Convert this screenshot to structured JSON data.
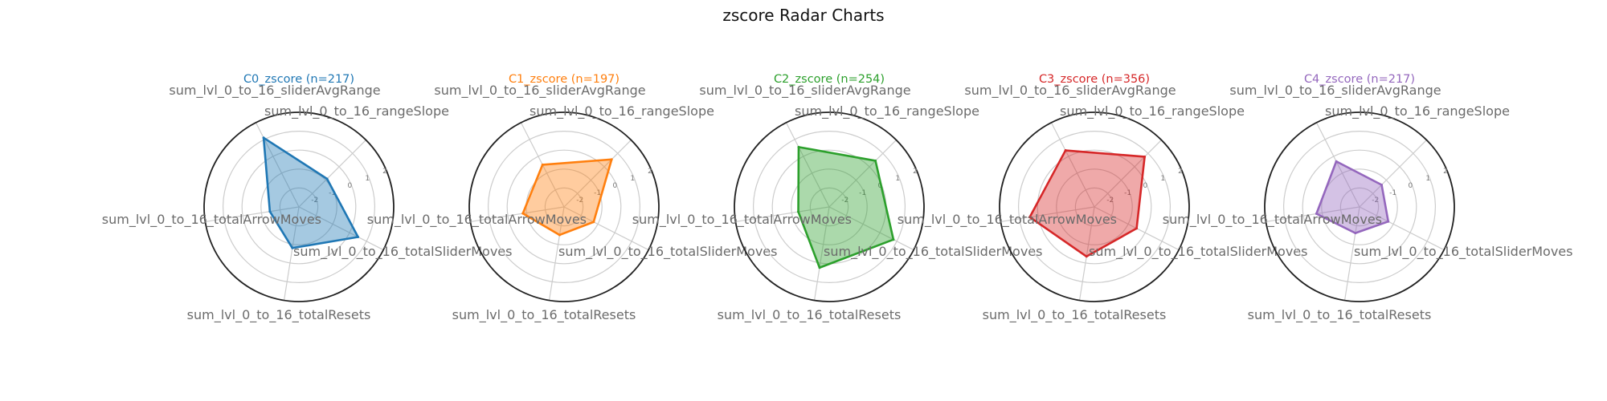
{
  "title": "zscore Radar Charts",
  "chart_data": {
    "type": "radar",
    "title": "zscore Radar Charts",
    "categories": [
      "sum_lvl_0_to_16_rangeSlope",
      "sum_lvl_0_to_16_sliderAvgRange",
      "sum_lvl_0_to_16_totalArrowMoves",
      "sum_lvl_0_to_16_totalResets",
      "sum_lvl_0_to_16_totalSliderMoves"
    ],
    "radial_ticks": [
      "-2",
      "-1",
      "0",
      "1",
      "2"
    ],
    "rlim": [
      -3,
      2
    ],
    "grid": true,
    "series": [
      {
        "name": "C0_zscore (n=217)",
        "color": "#1f77b4",
        "values": [
          -0.9,
          1.1,
          -1.45,
          -0.8,
          0.5
        ]
      },
      {
        "name": "C1_zscore (n=197)",
        "color": "#ff7f0e",
        "values": [
          0.55,
          -0.5,
          -0.8,
          -1.5,
          -1.25
        ]
      },
      {
        "name": "C2_zscore (n=254)",
        "color": "#2ca02c",
        "values": [
          0.45,
          0.55,
          -1.35,
          0.25,
          0.8
        ]
      },
      {
        "name": "C3_zscore (n=356)",
        "color": "#d62728",
        "values": [
          0.75,
          0.35,
          0.45,
          -0.35,
          -0.5
        ]
      },
      {
        "name": "C4_zscore (n=217)",
        "color": "#9467bd",
        "values": [
          -1.35,
          -0.3,
          -0.7,
          -1.6,
          -1.3
        ]
      }
    ]
  }
}
